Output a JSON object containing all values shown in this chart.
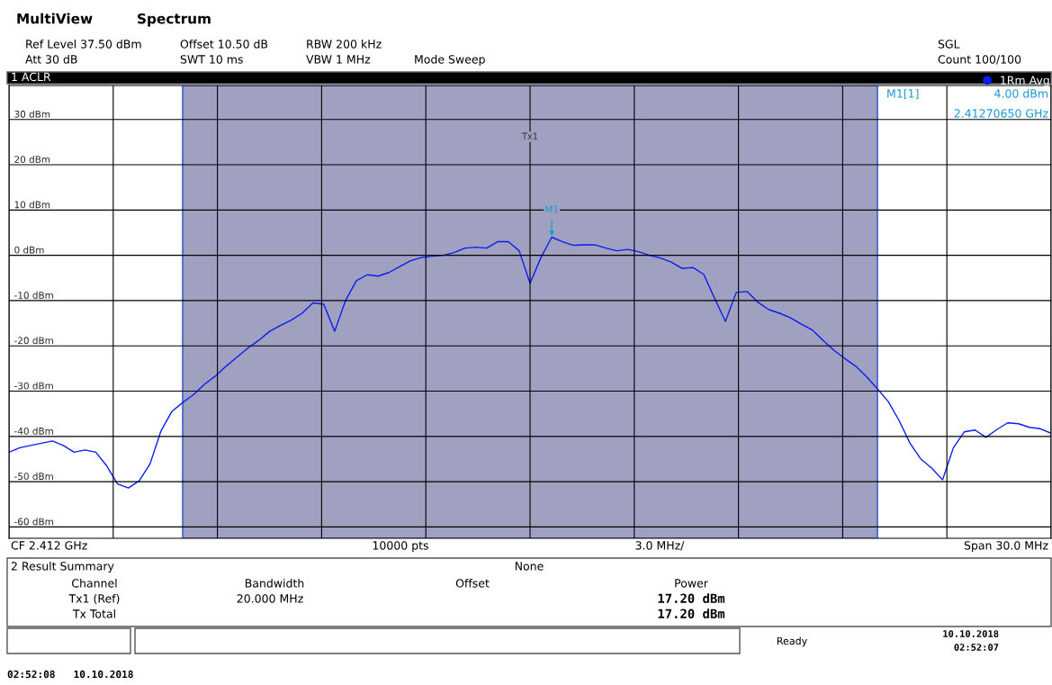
{
  "chart_data": {
    "type": "line",
    "title": "1 ACLR",
    "categories": [
      null,
      null,
      null,
      null,
      null,
      null,
      null,
      null,
      null,
      null,
      null,
      null,
      null,
      null,
      null,
      null,
      null,
      null,
      null,
      null,
      null,
      null,
      null,
      null,
      null,
      null,
      null,
      null,
      null,
      null,
      null,
      null,
      null,
      null,
      null,
      null,
      null,
      null,
      null,
      null,
      null,
      null,
      null,
      null,
      null,
      null,
      null,
      null,
      null,
      null,
      null,
      null,
      null,
      null,
      null,
      null,
      null,
      null,
      null,
      null,
      null,
      null,
      null,
      null,
      null,
      null,
      null,
      null,
      null,
      null,
      null,
      null,
      null,
      null,
      null,
      null,
      null,
      null,
      null,
      null,
      null,
      null,
      null,
      null,
      null,
      null,
      null,
      null,
      null,
      null,
      null,
      null,
      null,
      null,
      null,
      null,
      null
    ],
    "series": [
      {
        "name": "1Rm Avg",
        "color": "#0a1ef0",
        "values": [
          -43.5,
          -42.5,
          -42.0,
          -41.5,
          -41.0,
          -42.0,
          -43.5,
          -43.0,
          -43.5,
          -46.5,
          -50.5,
          -51.4,
          -49.8,
          -46.0,
          -38.8,
          -34.5,
          -32.5,
          -30.8,
          -28.5,
          -26.7,
          -24.5,
          -22.5,
          -20.5,
          -18.8,
          -16.8,
          -15.5,
          -14.3,
          -12.8,
          -10.5,
          -10.8,
          -16.8,
          -10.0,
          -5.6,
          -4.3,
          -4.6,
          -3.8,
          -2.5,
          -1.2,
          -0.5,
          -0.2,
          0.0,
          0.6,
          1.6,
          1.8,
          1.6,
          3.0,
          3.0,
          1.0,
          -6.2,
          -0.5,
          4.0,
          3.0,
          2.2,
          2.3,
          2.3,
          1.6,
          1.0,
          1.3,
          0.8,
          0.0,
          -0.6,
          -1.5,
          -2.9,
          -2.7,
          -4.2,
          -9.5,
          -14.6,
          -8.2,
          -8.0,
          -10.4,
          -12.0,
          -12.8,
          -13.8,
          -15.2,
          -16.5,
          -18.8,
          -21.0,
          -22.8,
          -24.5,
          -26.8,
          -29.5,
          -32.3,
          -36.5,
          -41.5,
          -45.0,
          -47.0,
          -49.6,
          -42.5,
          -39.0,
          -38.6,
          -40.2,
          -38.5,
          -37.0,
          -37.2,
          -38.0,
          -38.3,
          -39.3
        ]
      }
    ],
    "ylim": [
      -62.5,
      37.5
    ],
    "yticks": [
      {
        "value": 30,
        "label": "30 dBm"
      },
      {
        "value": 20,
        "label": "20 dBm"
      },
      {
        "value": 10,
        "label": "10 dBm"
      },
      {
        "value": 0,
        "label": "0 dBm"
      },
      {
        "value": -10,
        "label": "-10 dBm"
      },
      {
        "value": -20,
        "label": "-20 dBm"
      },
      {
        "value": -30,
        "label": "-30 dBm"
      },
      {
        "value": -40,
        "label": "-40 dBm"
      },
      {
        "value": -50,
        "label": "-50 dBm"
      },
      {
        "value": -60,
        "label": "-60 dBm"
      }
    ],
    "tick_labels": "y",
    "grid": true,
    "legend": "top right",
    "marker": "none",
    "line_style": "solid",
    "annotations": [
      "MultiView",
      "Spectrum",
      "Ref Level 37.50 dBm",
      "Offset 10.50 dB",
      "RBW 200 kHz",
      "Att 30 dB",
      "SWT 10 ms",
      "VBW 1 MHz",
      "Mode Sweep",
      "SGL",
      "Count 100/100",
      {
        "text": "M1",
        "y": 4.0
      },
      "M1[1]",
      "4.00 dBm",
      "2.41270650 GHz",
      "CF 2.412 GHz",
      "10000 pts",
      "3.0 MHz/",
      "Span 30.0 MHz",
      "2 Result Summary",
      "None",
      "Channel",
      "Bandwidth",
      "Offset",
      "Power",
      "Tx1 (Ref)",
      "20.000 MHz",
      "17.20 dBm",
      "Tx Total",
      "17.20 dBm",
      "Ready",
      "10.10.2018",
      "02:52:07",
      "02:52:08   10.10.2018",
      "Tx1"
    ]
  }
}
